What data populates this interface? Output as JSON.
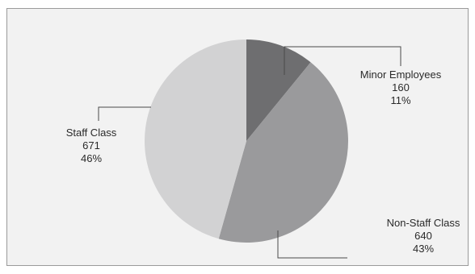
{
  "chart_data": {
    "type": "pie",
    "title": "",
    "slices": [
      {
        "label": "Minor Employees",
        "value": 160,
        "percent": "11%",
        "color": "#6e6e70"
      },
      {
        "label": "Non-Staff Class",
        "value": 640,
        "percent": "43%",
        "color": "#9a9a9c"
      },
      {
        "label": "Staff Class",
        "value": 671,
        "percent": "46%",
        "color": "#d2d2d3"
      }
    ],
    "legend": "none",
    "data_labels": "outside with leader lines"
  }
}
